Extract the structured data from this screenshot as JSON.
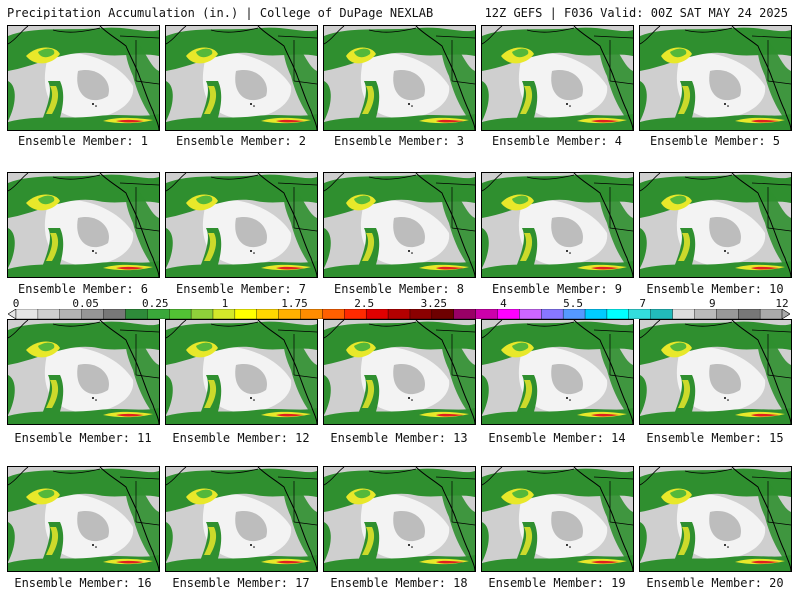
{
  "header": {
    "left": "Precipitation Accumulation (in.) | College of DuPage NEXLAB",
    "right": "12Z GEFS | F036 Valid: 00Z SAT MAY 24 2025"
  },
  "colorbar": {
    "labels": [
      "0",
      "0.05",
      "0.25",
      "1",
      "1.75",
      "2.5",
      "3.25",
      "4",
      "5.5",
      "7",
      "9",
      "12"
    ],
    "colors": [
      "#e6e6e6",
      "#cfcfcf",
      "#b4b4b4",
      "#969696",
      "#787878",
      "#2e8b3a",
      "#3aa83a",
      "#52c234",
      "#8fd13a",
      "#d4e82a",
      "#ffff00",
      "#ffd700",
      "#ffb000",
      "#ff8c00",
      "#ff6000",
      "#ff2a00",
      "#e00000",
      "#b40000",
      "#8b0000",
      "#6e0000",
      "#990066",
      "#cc00aa",
      "#ff00ff",
      "#cc66ff",
      "#8877ff",
      "#5599ff",
      "#00ccff",
      "#00ffff",
      "#33dddd",
      "#22bbbb",
      "#dddddd",
      "#bbbbbb",
      "#999999",
      "#777777",
      "#aaaaaa"
    ]
  },
  "panels": [
    {
      "label": "Ensemble Member: 1"
    },
    {
      "label": "Ensemble Member: 2"
    },
    {
      "label": "Ensemble Member: 3"
    },
    {
      "label": "Ensemble Member: 4"
    },
    {
      "label": "Ensemble Member: 5"
    },
    {
      "label": "Ensemble Member: 6"
    },
    {
      "label": "Ensemble Member: 7"
    },
    {
      "label": "Ensemble Member: 8"
    },
    {
      "label": "Ensemble Member: 9"
    },
    {
      "label": "Ensemble Member: 10"
    },
    {
      "label": "Ensemble Member: 11"
    },
    {
      "label": "Ensemble Member: 12"
    },
    {
      "label": "Ensemble Member: 13"
    },
    {
      "label": "Ensemble Member: 14"
    },
    {
      "label": "Ensemble Member: 15"
    },
    {
      "label": "Ensemble Member: 16"
    },
    {
      "label": "Ensemble Member: 17"
    },
    {
      "label": "Ensemble Member: 18"
    },
    {
      "label": "Ensemble Member: 19"
    },
    {
      "label": "Ensemble Member: 20"
    }
  ],
  "map_colors": {
    "green": "#2f8f2f",
    "light_green": "#55b83a",
    "yellow": "#e8e82a",
    "red": "#e02020",
    "gray": "#9a9a9a",
    "light_gray": "#cfcfcf"
  }
}
